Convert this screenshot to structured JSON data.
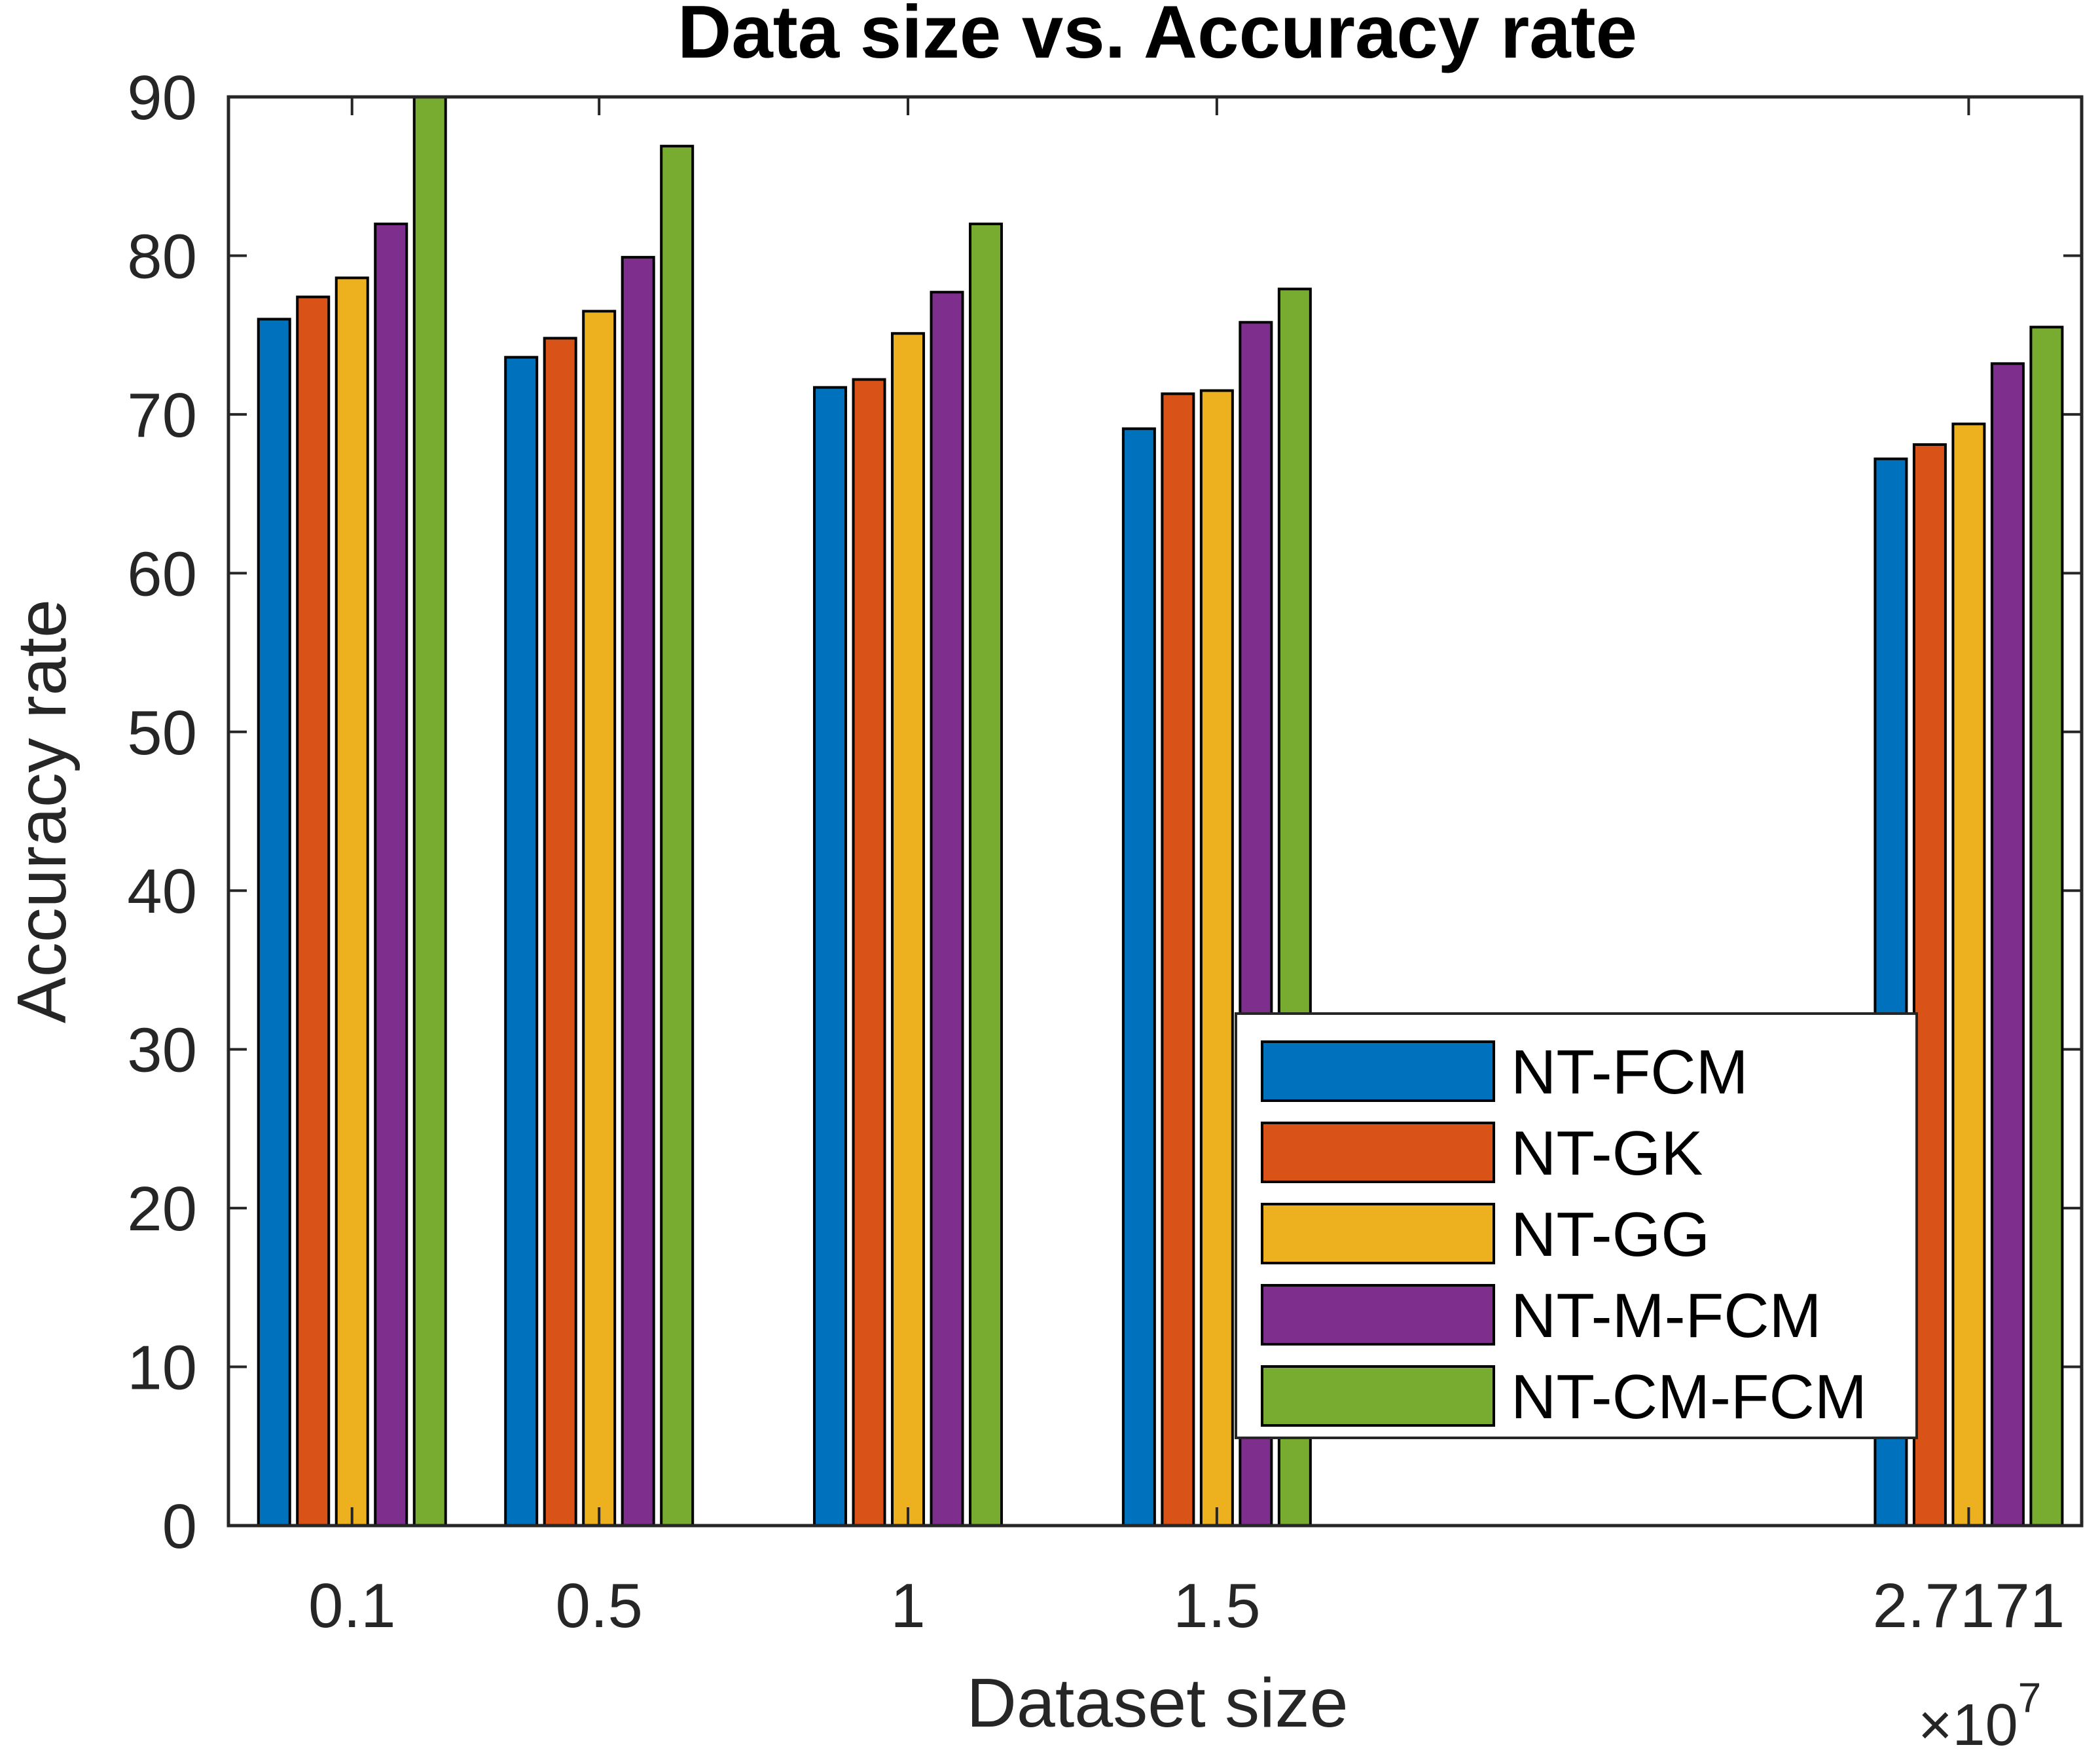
{
  "chart_data": {
    "type": "bar",
    "title": "Data size vs. Accuracy rate",
    "xlabel": "Dataset size",
    "ylabel": "Accuracy rate",
    "x_exponent_prefix": "×10",
    "x_exponent": "7",
    "x": [
      0.1,
      0.5,
      1,
      1.5,
      2.7171
    ],
    "categories": [
      "0.1",
      "0.5",
      "1",
      "1.5",
      "2.7171"
    ],
    "xlim": [
      -0.1,
      2.9
    ],
    "ylim": [
      0,
      90
    ],
    "yticks": [
      0,
      10,
      20,
      30,
      40,
      50,
      60,
      70,
      80,
      90
    ],
    "grid": false,
    "legend_position": "lower-right-center",
    "series": [
      {
        "name": "NT-FCM",
        "color": "#0072BD",
        "values": [
          76.0,
          73.6,
          71.7,
          69.1,
          67.2
        ]
      },
      {
        "name": "NT-GK",
        "color": "#D95319",
        "values": [
          77.4,
          74.8,
          72.2,
          71.3,
          68.1
        ]
      },
      {
        "name": "NT-GG",
        "color": "#EDB120",
        "values": [
          78.6,
          76.5,
          75.1,
          71.5,
          69.4
        ]
      },
      {
        "name": "NT-M-FCM",
        "color": "#7E2F8E",
        "values": [
          82.0,
          79.9,
          77.7,
          75.8,
          73.2
        ]
      },
      {
        "name": "NT-CM-FCM",
        "color": "#77AC30",
        "values": [
          90.0,
          86.9,
          82.0,
          77.9,
          75.5
        ]
      }
    ]
  }
}
